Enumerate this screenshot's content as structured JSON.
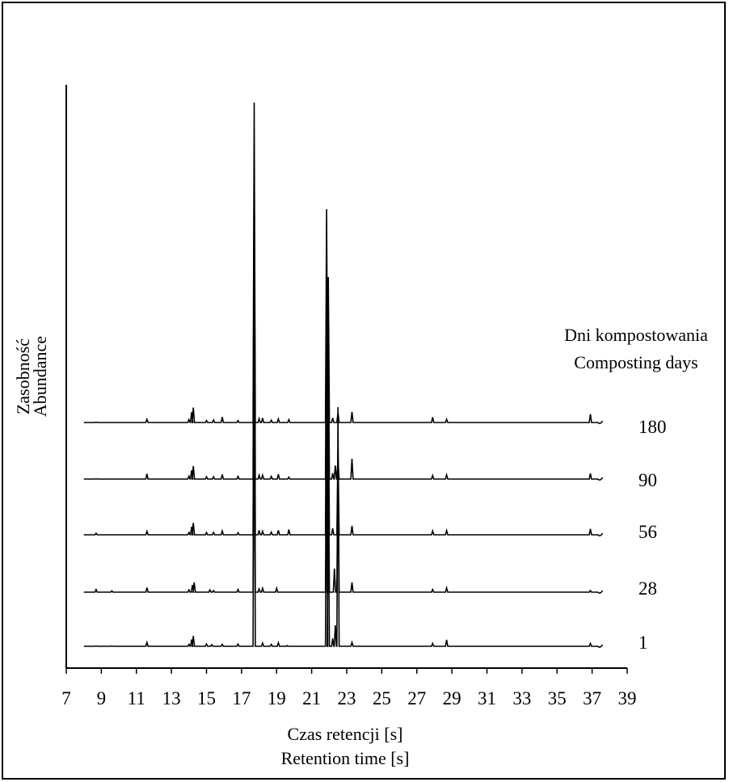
{
  "chart_data": {
    "type": "line",
    "xlabel_lines": [
      "Czas retencji [s]",
      "Retention time [s]"
    ],
    "ylabel_lines": [
      "Zasobność",
      "Abundance"
    ],
    "legend_title_lines": [
      "Dni kompostowania",
      "Composting days"
    ],
    "xlim": [
      7,
      39
    ],
    "x_ticks": [
      7,
      9,
      11,
      13,
      15,
      17,
      19,
      21,
      23,
      25,
      27,
      29,
      31,
      33,
      35,
      37,
      39
    ],
    "grid": false,
    "series": [
      {
        "name": "1",
        "peaks": [
          [
            8.7,
            0.01
          ],
          [
            9.6,
            0.01
          ],
          [
            11.6,
            0.12
          ],
          [
            14.0,
            0.06
          ],
          [
            14.15,
            0.21
          ],
          [
            14.25,
            0.32
          ],
          [
            15.0,
            0.07
          ],
          [
            15.3,
            0.05
          ],
          [
            15.9,
            0.06
          ],
          [
            16.8,
            0.07
          ],
          [
            17.72,
            9.9
          ],
          [
            18.2,
            0.1
          ],
          [
            18.7,
            0.06
          ],
          [
            19.1,
            0.11
          ],
          [
            19.6,
            0.02
          ],
          [
            21.85,
            6.6
          ],
          [
            21.95,
            4.5
          ],
          [
            22.2,
            0.24
          ],
          [
            22.35,
            0.65
          ],
          [
            22.5,
            7.4
          ],
          [
            23.3,
            0.12
          ],
          [
            27.9,
            0.09
          ],
          [
            28.7,
            0.2
          ],
          [
            36.9,
            0.09
          ]
        ]
      },
      {
        "name": "28",
        "peaks": [
          [
            8.7,
            0.08
          ],
          [
            9.6,
            0.04
          ],
          [
            11.6,
            0.14
          ],
          [
            14.0,
            0.07
          ],
          [
            14.2,
            0.22
          ],
          [
            14.3,
            0.3
          ],
          [
            15.2,
            0.07
          ],
          [
            15.4,
            0.05
          ],
          [
            16.8,
            0.08
          ],
          [
            17.72,
            9.9
          ],
          [
            18.0,
            0.1
          ],
          [
            18.2,
            0.12
          ],
          [
            19.0,
            0.12
          ],
          [
            21.85,
            6.6
          ],
          [
            21.95,
            4.5
          ],
          [
            22.3,
            0.73
          ],
          [
            22.5,
            4.2
          ],
          [
            23.3,
            0.3
          ],
          [
            27.9,
            0.08
          ],
          [
            28.7,
            0.13
          ],
          [
            36.9,
            0.05
          ]
        ]
      },
      {
        "name": "56",
        "peaks": [
          [
            8.7,
            0.05
          ],
          [
            11.6,
            0.11
          ],
          [
            14.0,
            0.07
          ],
          [
            14.15,
            0.25
          ],
          [
            14.25,
            0.37
          ],
          [
            15.0,
            0.07
          ],
          [
            15.4,
            0.07
          ],
          [
            15.9,
            0.12
          ],
          [
            16.8,
            0.06
          ],
          [
            17.72,
            9.9
          ],
          [
            18.0,
            0.14
          ],
          [
            18.2,
            0.11
          ],
          [
            18.7,
            0.08
          ],
          [
            19.1,
            0.14
          ],
          [
            19.7,
            0.16
          ],
          [
            21.85,
            6.6
          ],
          [
            21.95,
            4.5
          ],
          [
            22.2,
            0.2
          ],
          [
            22.5,
            2.6
          ],
          [
            23.3,
            0.28
          ],
          [
            27.9,
            0.12
          ],
          [
            28.7,
            0.13
          ],
          [
            36.9,
            0.18
          ]
        ]
      },
      {
        "name": "90",
        "peaks": [
          [
            8.7,
            0.01
          ],
          [
            11.6,
            0.16
          ],
          [
            14.0,
            0.09
          ],
          [
            14.15,
            0.27
          ],
          [
            14.25,
            0.4
          ],
          [
            15.0,
            0.07
          ],
          [
            15.4,
            0.07
          ],
          [
            15.9,
            0.14
          ],
          [
            16.8,
            0.08
          ],
          [
            17.72,
            9.9
          ],
          [
            18.0,
            0.12
          ],
          [
            18.2,
            0.12
          ],
          [
            18.7,
            0.08
          ],
          [
            19.1,
            0.15
          ],
          [
            19.7,
            0.06
          ],
          [
            21.85,
            6.6
          ],
          [
            21.95,
            4.5
          ],
          [
            22.2,
            0.18
          ],
          [
            22.35,
            0.42
          ],
          [
            22.5,
            0.6
          ],
          [
            23.3,
            0.63
          ],
          [
            27.9,
            0.11
          ],
          [
            28.7,
            0.13
          ],
          [
            36.9,
            0.17
          ]
        ]
      },
      {
        "name": "180",
        "peaks": [
          [
            8.7,
            0.01
          ],
          [
            11.6,
            0.1
          ],
          [
            14.0,
            0.09
          ],
          [
            14.15,
            0.32
          ],
          [
            14.25,
            0.46
          ],
          [
            15.0,
            0.06
          ],
          [
            15.4,
            0.08
          ],
          [
            15.9,
            0.17
          ],
          [
            16.8,
            0.06
          ],
          [
            17.72,
            9.9
          ],
          [
            18.0,
            0.12
          ],
          [
            18.2,
            0.14
          ],
          [
            18.7,
            0.07
          ],
          [
            19.1,
            0.11
          ],
          [
            19.7,
            0.09
          ],
          [
            21.85,
            6.6
          ],
          [
            21.95,
            4.5
          ],
          [
            22.2,
            0.14
          ],
          [
            22.5,
            0.3
          ],
          [
            23.3,
            0.33
          ],
          [
            27.9,
            0.16
          ],
          [
            28.7,
            0.1
          ],
          [
            36.9,
            0.26
          ]
        ]
      }
    ]
  }
}
